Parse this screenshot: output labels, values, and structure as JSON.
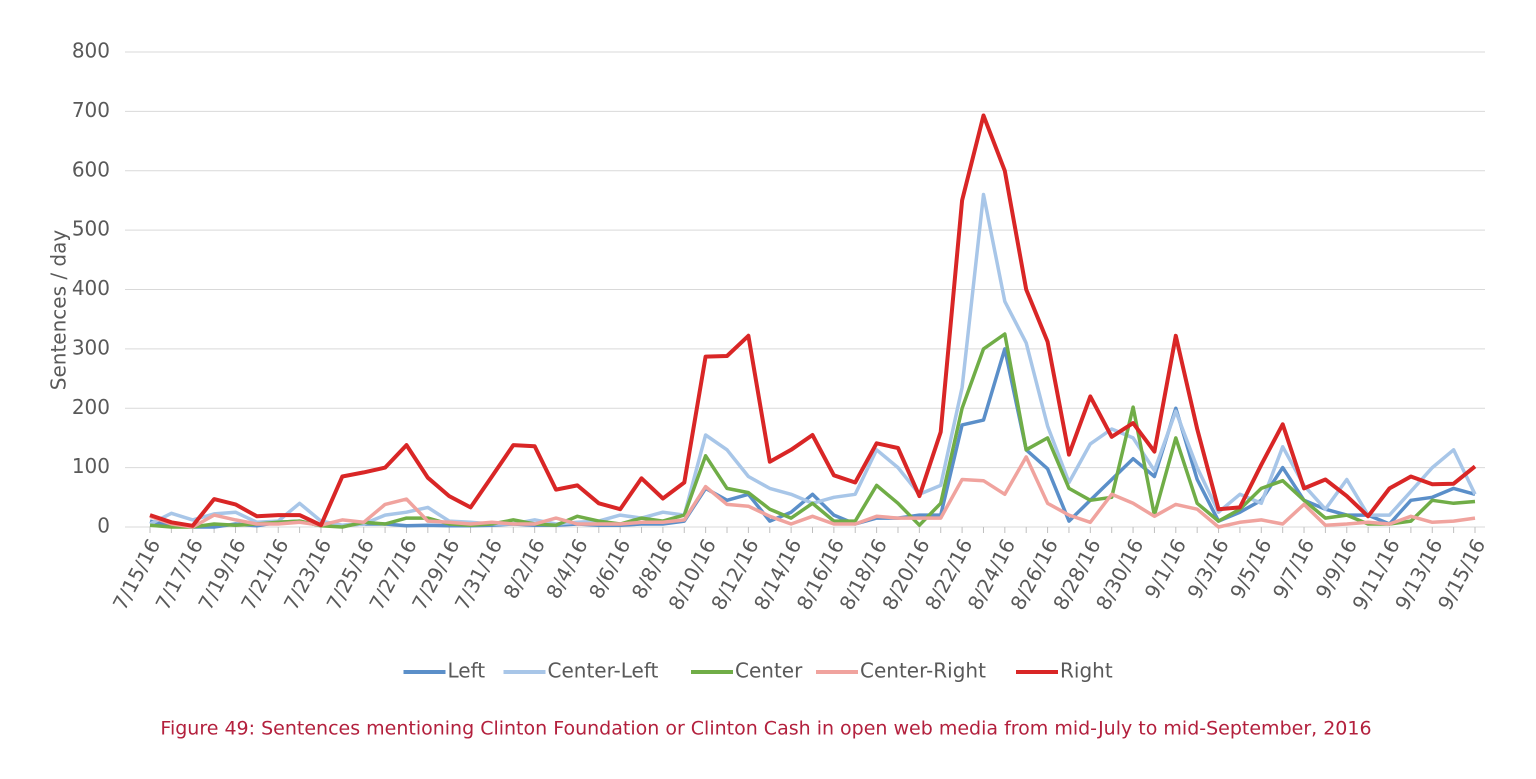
{
  "chart_data": {
    "type": "line",
    "caption": "Figure 49: Sentences mentioning Clinton Foundation or Clinton Cash in open web media from mid-July to mid-September, 2016",
    "ylabel": "Sentences / day",
    "categories": [
      "7/15/16",
      null,
      "7/17/16",
      null,
      "7/19/16",
      null,
      "7/21/16",
      null,
      "7/23/16",
      null,
      "7/25/16",
      null,
      "7/27/16",
      null,
      "7/29/16",
      null,
      "7/31/16",
      null,
      "8/2/16",
      null,
      "8/4/16",
      null,
      "8/6/16",
      null,
      "8/8/16",
      null,
      "8/10/16",
      null,
      "8/12/16",
      null,
      "8/14/16",
      null,
      "8/16/16",
      null,
      "8/18/16",
      null,
      "8/20/16",
      null,
      "8/22/16",
      null,
      "8/24/16",
      null,
      "8/26/16",
      null,
      "8/28/16",
      null,
      "8/30/16",
      null,
      "9/1/16",
      null,
      "9/3/16",
      null,
      "9/5/16",
      null,
      "9/7/16",
      null,
      "9/9/16",
      null,
      "9/11/16",
      null,
      "9/13/16",
      null,
      "9/15/16"
    ],
    "series": [
      {
        "name": "Left",
        "color": "#5b8fc9",
        "values": [
          10,
          2,
          0,
          0,
          5,
          2,
          8,
          10,
          2,
          3,
          5,
          5,
          2,
          3,
          2,
          2,
          3,
          5,
          3,
          3,
          5,
          3,
          3,
          5,
          5,
          10,
          65,
          45,
          55,
          10,
          25,
          55,
          20,
          5,
          15,
          15,
          20,
          20,
          172,
          180,
          300,
          130,
          98,
          10,
          45,
          80,
          115,
          85,
          200,
          80,
          10,
          25,
          45,
          100,
          45,
          30,
          20,
          20,
          5,
          45,
          50,
          65,
          55
        ]
      },
      {
        "name": "Center-Left",
        "color": "#a8c6e8",
        "values": [
          5,
          23,
          12,
          22,
          25,
          8,
          10,
          40,
          10,
          3,
          5,
          20,
          25,
          33,
          10,
          8,
          5,
          5,
          12,
          5,
          8,
          10,
          20,
          15,
          25,
          20,
          155,
          130,
          85,
          65,
          55,
          40,
          50,
          55,
          130,
          100,
          55,
          70,
          235,
          560,
          380,
          310,
          170,
          75,
          140,
          165,
          150,
          95,
          195,
          100,
          25,
          55,
          40,
          135,
          70,
          30,
          80,
          20,
          20,
          60,
          100,
          130,
          55
        ]
      },
      {
        "name": "Center",
        "color": "#70ad47",
        "values": [
          3,
          0,
          0,
          5,
          3,
          5,
          8,
          10,
          2,
          0,
          8,
          5,
          15,
          15,
          5,
          3,
          5,
          12,
          5,
          3,
          18,
          10,
          5,
          15,
          10,
          20,
          120,
          65,
          58,
          30,
          15,
          40,
          10,
          10,
          70,
          40,
          3,
          40,
          200,
          300,
          325,
          130,
          150,
          65,
          45,
          50,
          202,
          20,
          150,
          40,
          10,
          30,
          65,
          78,
          45,
          15,
          20,
          5,
          5,
          10,
          45,
          40,
          43
        ]
      },
      {
        "name": "Center-Right",
        "color": "#f0a39e",
        "values": [
          18,
          5,
          0,
          20,
          12,
          5,
          5,
          8,
          3,
          12,
          8,
          38,
          47,
          10,
          8,
          5,
          8,
          5,
          5,
          15,
          5,
          5,
          5,
          8,
          8,
          12,
          68,
          38,
          35,
          18,
          5,
          18,
          5,
          5,
          18,
          15,
          15,
          15,
          80,
          78,
          55,
          118,
          40,
          20,
          8,
          55,
          40,
          18,
          38,
          30,
          0,
          8,
          12,
          5,
          38,
          3,
          5,
          8,
          5,
          18,
          8,
          10,
          15
        ]
      },
      {
        "name": "Right",
        "color": "#d92626",
        "values": [
          20,
          8,
          2,
          47,
          38,
          18,
          20,
          20,
          3,
          85,
          92,
          100,
          138,
          83,
          52,
          33,
          85,
          138,
          136,
          63,
          70,
          40,
          30,
          82,
          48,
          75,
          287,
          288,
          322,
          110,
          130,
          155,
          87,
          75,
          141,
          133,
          52,
          160,
          550,
          693,
          600,
          400,
          312,
          122,
          220,
          152,
          175,
          127,
          322,
          165,
          30,
          33,
          105,
          173,
          65,
          80,
          52,
          18,
          65,
          85,
          72,
          73,
          102
        ]
      }
    ],
    "ylim": [
      0,
      800
    ],
    "yticks": [
      0,
      100,
      200,
      300,
      400,
      500,
      600,
      700,
      800
    ],
    "grid": true,
    "legend": "bottom"
  }
}
